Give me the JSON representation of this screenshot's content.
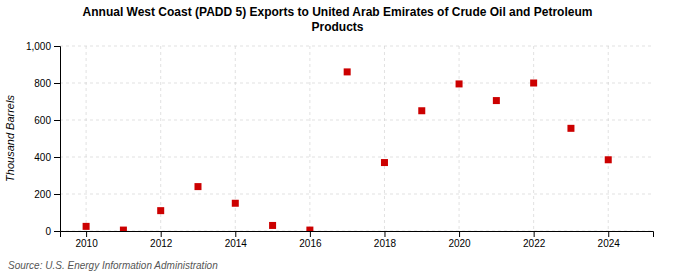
{
  "chart_data": {
    "type": "scatter",
    "title": "Annual West Coast (PADD 5) Exports to United Arab Emirates of Crude Oil and Petroleum\nProducts",
    "ylabel": "Thousand Barrels",
    "source": "Source: U.S. Energy Information Administration",
    "x": [
      2010,
      2011,
      2012,
      2013,
      2014,
      2015,
      2016,
      2017,
      2018,
      2019,
      2020,
      2021,
      2022,
      2023,
      2024
    ],
    "values": [
      25,
      5,
      110,
      240,
      150,
      30,
      5,
      860,
      370,
      650,
      795,
      705,
      800,
      555,
      385
    ],
    "color": "#cc0000",
    "marker": "square",
    "xlim": [
      2009.3,
      2025.2
    ],
    "xticks": [
      2010,
      2012,
      2014,
      2016,
      2018,
      2020,
      2022,
      2024
    ],
    "ylim": [
      0,
      1000
    ],
    "yticks": [
      0,
      200,
      400,
      600,
      800,
      {
        "value": 1000,
        "label": "1,000"
      }
    ],
    "grid": true
  }
}
